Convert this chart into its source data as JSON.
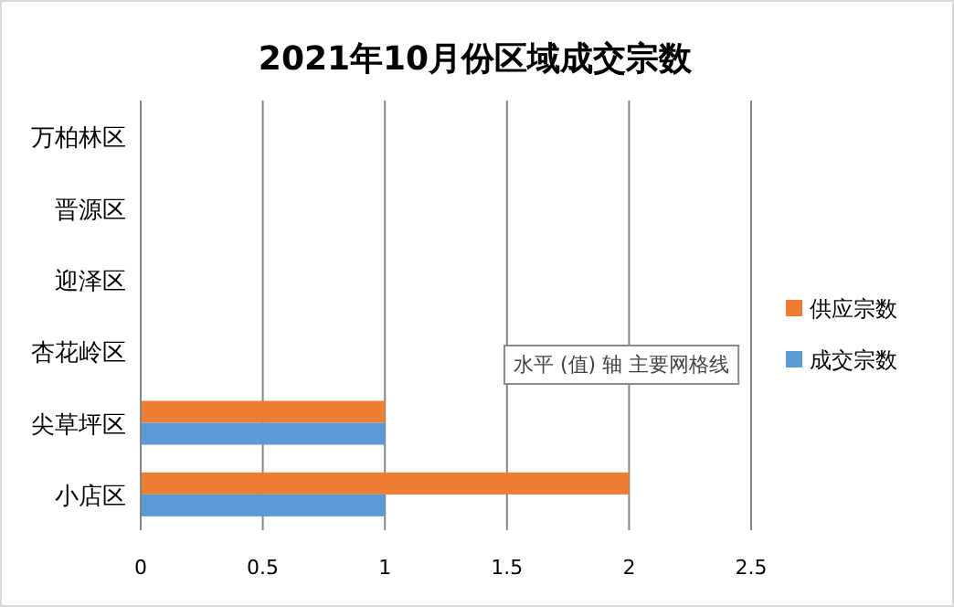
{
  "chart_data": {
    "type": "bar",
    "orientation": "horizontal",
    "title": "2021年10月份区域成交宗数",
    "categories": [
      "万柏林区",
      "晋源区",
      "迎泽区",
      "杏花岭区",
      "尖草坪区",
      "小店区"
    ],
    "series": [
      {
        "name": "供应宗数",
        "color": "#ed7d31",
        "values": [
          0,
          0,
          0,
          0,
          1,
          2
        ]
      },
      {
        "name": "成交宗数",
        "color": "#5b9bd5",
        "values": [
          0,
          0,
          0,
          0,
          1,
          1
        ]
      }
    ],
    "xlim": [
      0,
      2.5
    ],
    "xticks": [
      0,
      0.5,
      1,
      1.5,
      2,
      2.5
    ],
    "grid": "x",
    "legend": "right",
    "annotations": [
      "水平 (值) 轴 主要网格线"
    ]
  }
}
